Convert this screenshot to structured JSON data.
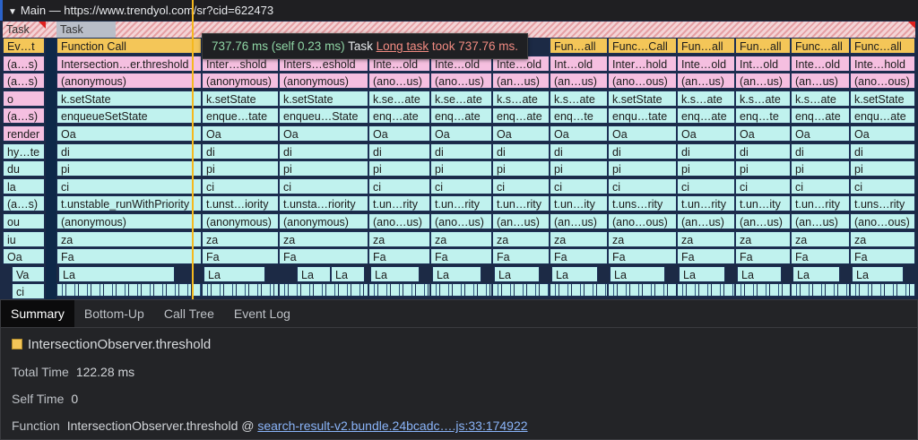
{
  "header": {
    "toggle_icon": "triangle-down",
    "title": "Main — https://www.trendyol.com/sr?cid=622473"
  },
  "task_row": {
    "left": "Task",
    "main": "Task"
  },
  "left_stack": [
    {
      "label": "Ev…t",
      "color": "y"
    },
    {
      "label": "(a…s)",
      "color": "p"
    },
    {
      "label": "(a…s)",
      "color": "p"
    },
    {
      "label": "o",
      "color": "p"
    },
    {
      "label": "(a…s)",
      "color": "p"
    },
    {
      "label": "render",
      "color": "p"
    },
    {
      "label": "hy…te",
      "color": "c"
    },
    {
      "label": "du",
      "color": "c"
    },
    {
      "label": "la",
      "color": "c"
    },
    {
      "label": "(a…s)",
      "color": "c"
    },
    {
      "label": "ou",
      "color": "c"
    },
    {
      "label": "iu",
      "color": "c"
    },
    {
      "label": "Oa",
      "color": "c"
    },
    {
      "label": "Va",
      "color": "c"
    },
    {
      "label": "ci",
      "color": "c"
    }
  ],
  "columns": [
    {
      "rows": [
        "Function Call",
        "Intersection…er.threshold",
        "(anonymous)",
        "k.setState",
        "enqueueSetState",
        "Oa",
        "di",
        "pi",
        "ci",
        "t.unstable_runWithPriority",
        "(anonymous)",
        "za",
        "Fa"
      ],
      "la": [
        "La"
      ]
    },
    {
      "rows": [
        "",
        "Inter…shold",
        "(anonymous)",
        "k.setState",
        "enque…tate",
        "Oa",
        "di",
        "pi",
        "ci",
        "t.unst…iority",
        "(anonymous)",
        "za",
        "Fa"
      ],
      "la": [
        "La"
      ]
    },
    {
      "rows": [
        "",
        "Inters…eshold",
        "(anonymous)",
        "k.setState",
        "enqueu…State",
        "Oa",
        "di",
        "pi",
        "ci",
        "t.unsta…riority",
        "(anonymous)",
        "za",
        "Fa"
      ],
      "la": [
        "La",
        "La"
      ]
    },
    {
      "rows": [
        "",
        "Inte…old",
        "(ano…us)",
        "k.se…ate",
        "enq…ate",
        "Oa",
        "di",
        "pi",
        "ci",
        "t.un…rity",
        "(ano…us)",
        "za",
        "Fa"
      ],
      "la": [
        "La"
      ]
    },
    {
      "rows": [
        "",
        "Inte…old",
        "(ano…us)",
        "k.se…ate",
        "enq…ate",
        "Oa",
        "di",
        "pi",
        "ci",
        "t.un…rity",
        "(ano…us)",
        "za",
        "Fa"
      ],
      "la": [
        "La"
      ]
    },
    {
      "rows": [
        "",
        "Inte…old",
        "(an…us)",
        "k.s…ate",
        "enq…ate",
        "Oa",
        "di",
        "pi",
        "ci",
        "t.un…rity",
        "(an…us)",
        "za",
        "Fa"
      ],
      "la": [
        "La"
      ]
    },
    {
      "rows": [
        "Fun…all",
        "Int…old",
        "(an…us)",
        "k.s…ate",
        "enq…te",
        "Oa",
        "di",
        "pi",
        "ci",
        "t.un…ity",
        "(an…us)",
        "za",
        "Fa"
      ],
      "la": [
        "La"
      ]
    },
    {
      "rows": [
        "Func…Call",
        "Inter…hold",
        "(ano…ous)",
        "k.setState",
        "enqu…tate",
        "Oa",
        "di",
        "pi",
        "ci",
        "t.uns…rity",
        "(ano…ous)",
        "za",
        "Fa"
      ],
      "la": [
        "La"
      ]
    },
    {
      "rows": [
        "Fun…all",
        "Inte…old",
        "(an…us)",
        "k.s…ate",
        "enq…ate",
        "Oa",
        "di",
        "pi",
        "ci",
        "t.un…rity",
        "(an…us)",
        "za",
        "Fa"
      ],
      "la": [
        "La"
      ]
    },
    {
      "rows": [
        "Fun…all",
        "Int…old",
        "(an…us)",
        "k.s…ate",
        "enq…te",
        "Oa",
        "di",
        "pi",
        "ci",
        "t.un…ity",
        "(an…us)",
        "za",
        "Fa"
      ],
      "la": [
        "La"
      ]
    },
    {
      "rows": [
        "Func…all",
        "Inte…old",
        "(an…us)",
        "k.s…ate",
        "enq…ate",
        "Oa",
        "di",
        "pi",
        "ci",
        "t.un…rity",
        "(an…us)",
        "za",
        "Fa"
      ],
      "la": [
        "La"
      ]
    },
    {
      "rows": [
        "Func…all",
        "Inte…hold",
        "(ano…ous)",
        "k.setState",
        "enqu…ate",
        "Oa",
        "di",
        "pi",
        "ci",
        "t.uns…rity",
        "(ano…ous)",
        "za",
        "Fa"
      ],
      "la": [
        "La"
      ]
    }
  ],
  "tooltip": {
    "duration": "737.76 ms (self 0.23 ms)",
    "name": "Task",
    "warning_link": "Long task",
    "warning_text": "took 737.76 ms."
  },
  "tabs": [
    "Summary",
    "Bottom-Up",
    "Call Tree",
    "Event Log"
  ],
  "active_tab": "Summary",
  "summary": {
    "title": "IntersectionObserver.threshold",
    "swatch_color": "#f4c658",
    "total_time_label": "Total Time",
    "total_time": "122.28 ms",
    "self_time_label": "Self Time",
    "self_time": "0",
    "function_label": "Function",
    "function_name": "IntersectionObserver.threshold @",
    "function_link": "search-result-v2.bundle.24bcadc….js:33:174922"
  },
  "colors": {
    "function_call": "#f4c658",
    "script": "#f5bfe0",
    "js_frame": "#c0f2ee",
    "cursor": "#f5b81e"
  }
}
